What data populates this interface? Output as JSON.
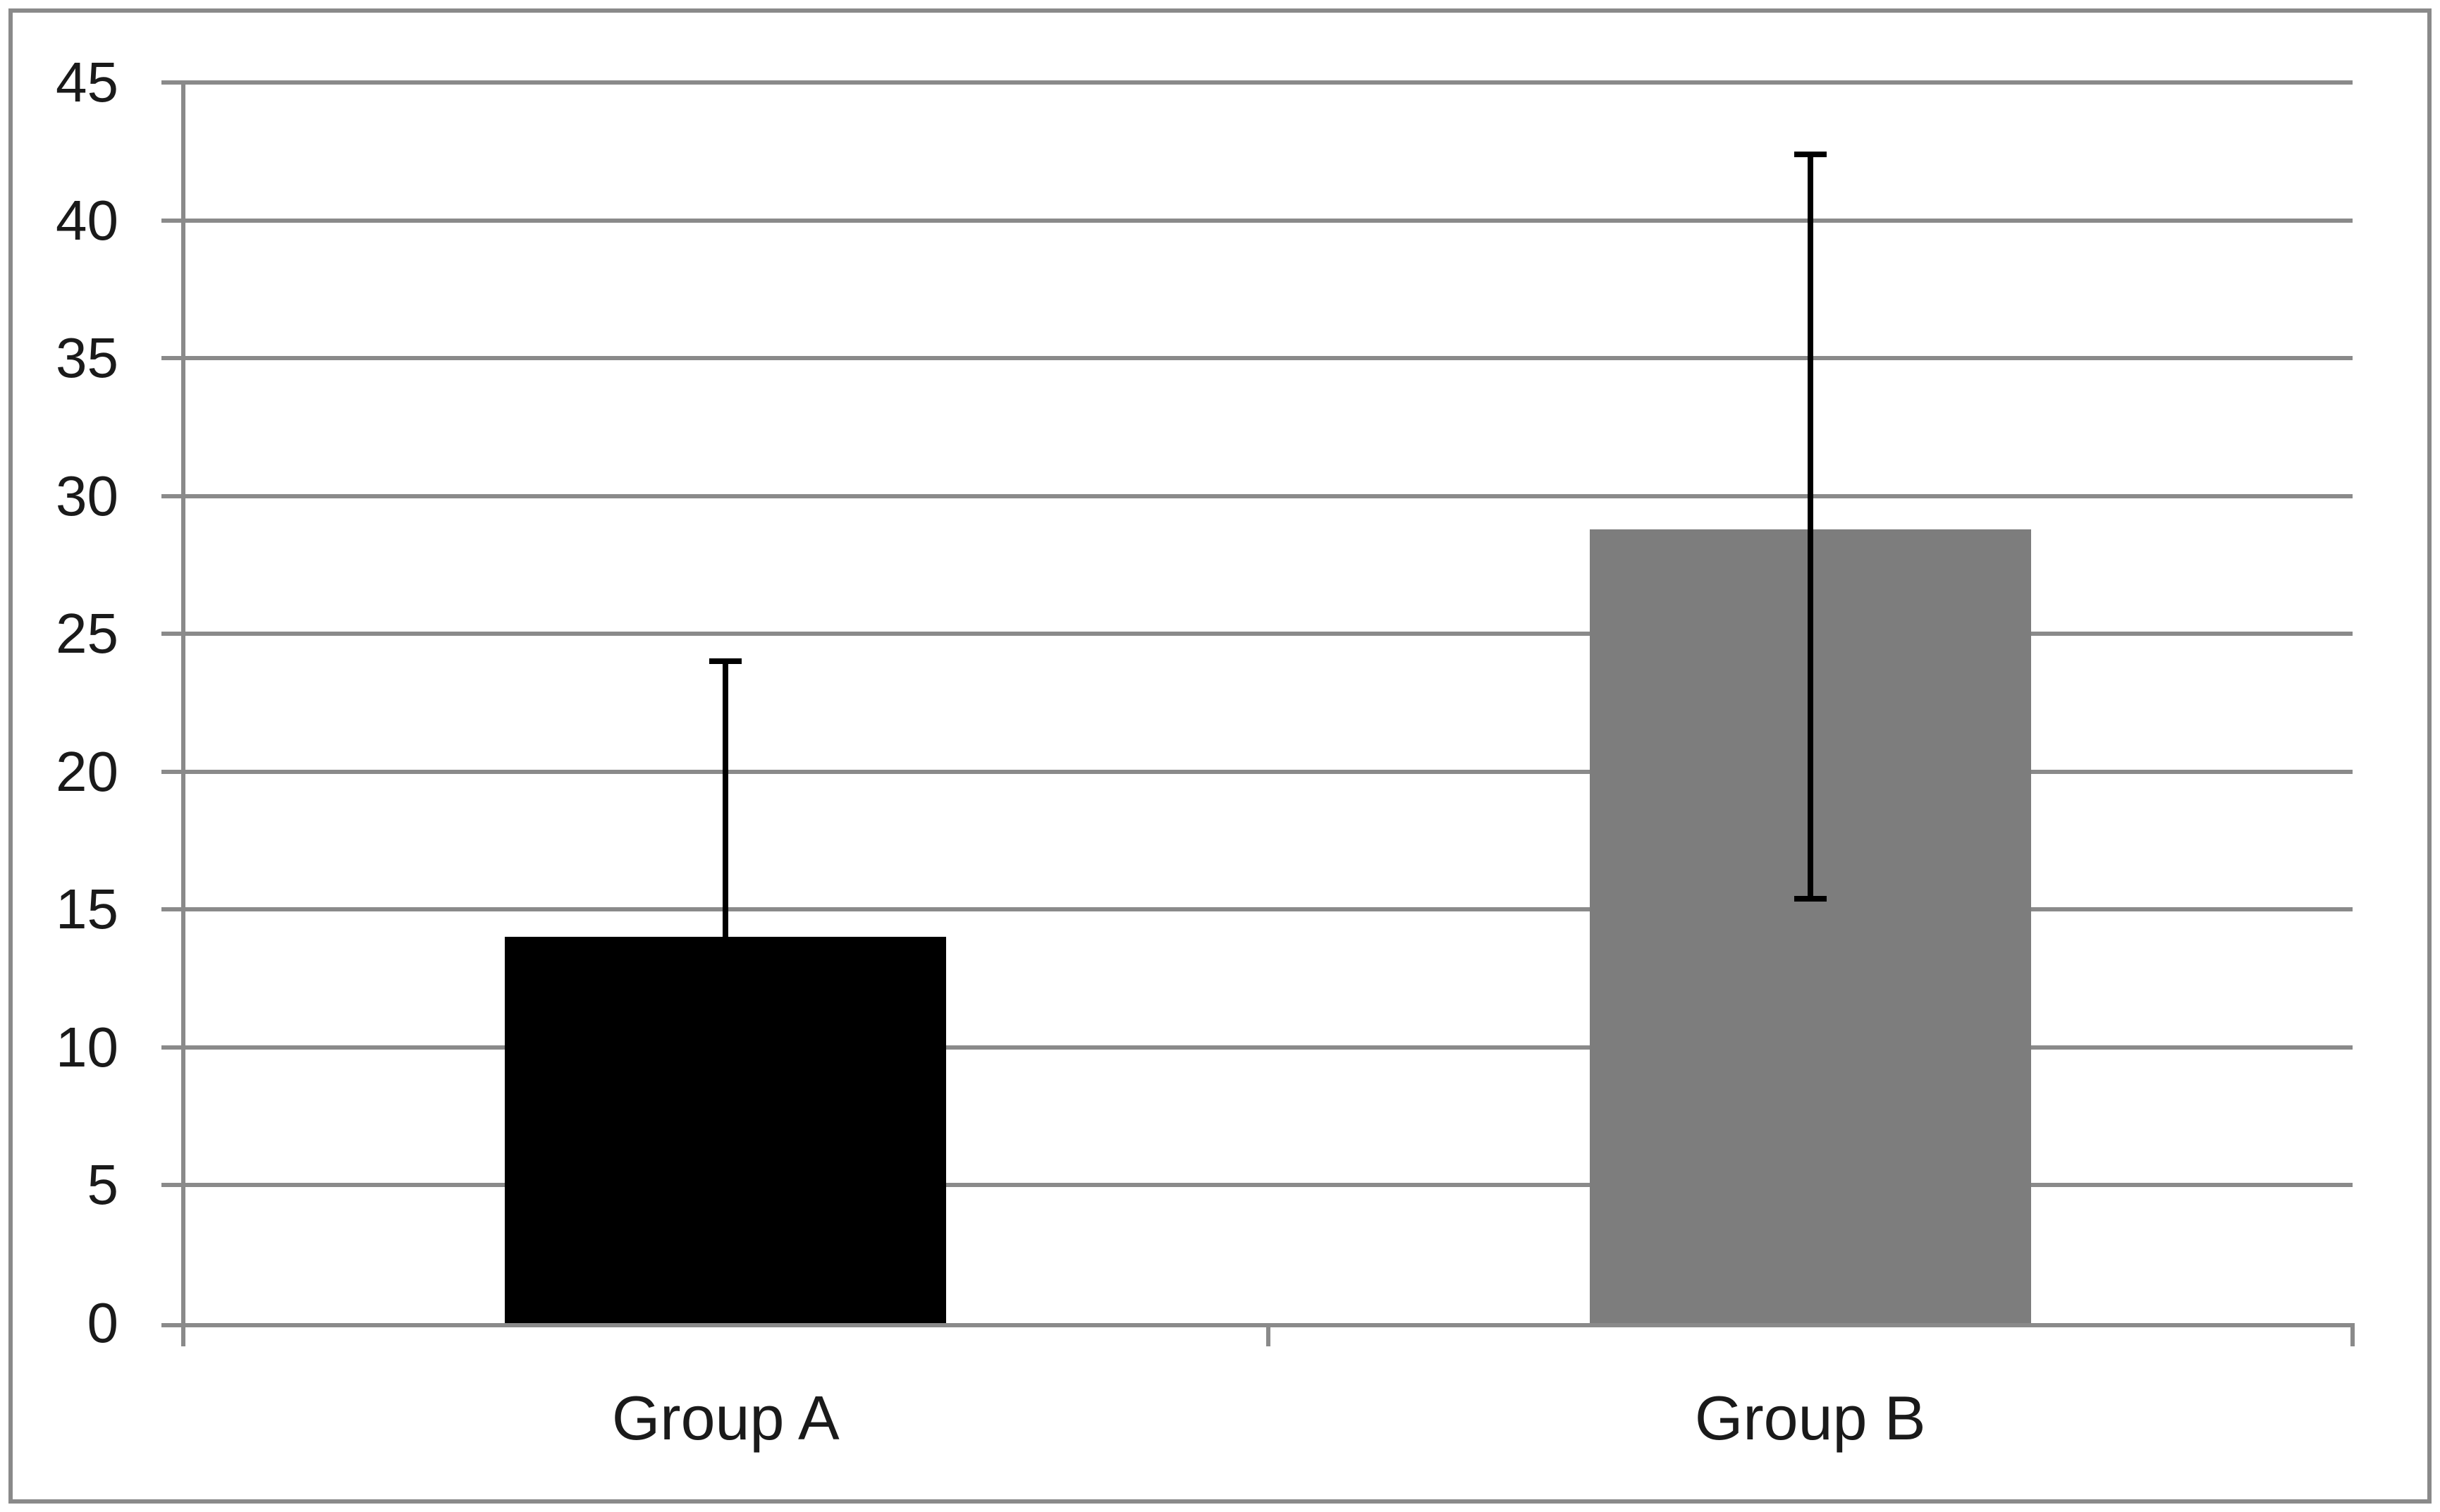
{
  "chart_data": {
    "type": "bar",
    "title": "",
    "xlabel": "",
    "ylabel": "",
    "categories": [
      "Group A",
      "Group B"
    ],
    "values": [
      14,
      28.8
    ],
    "bar_colors": [
      "#000000",
      "#7d7d7d"
    ],
    "error_bars": [
      {
        "category": "Group A",
        "from": 14,
        "to": 24,
        "cap_top": true,
        "cap_bottom": false
      },
      {
        "category": "Group B",
        "from": 15.4,
        "to": 42.4,
        "cap_top": true,
        "cap_bottom": true
      }
    ],
    "ylim": [
      0,
      45
    ],
    "ytick_step": 5,
    "yticks": [
      0,
      5,
      10,
      15,
      20,
      25,
      30,
      35,
      40,
      45
    ],
    "grid": true,
    "legend": "none",
    "colors": {
      "background": "#ffffff",
      "frame": "#8a8a8a",
      "gridline": "#8a8a8a",
      "axis": "#8a8a8a",
      "error_bar": "#000000",
      "text": "#1a1a1a"
    }
  }
}
